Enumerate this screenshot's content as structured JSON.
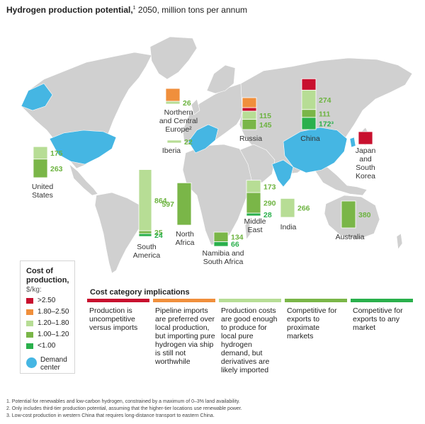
{
  "title": {
    "bold": "Hydrogen production potential,",
    "sup": "1",
    "rest": " 2050, million tons per annum"
  },
  "colors": {
    "gt250": "#c8102e",
    "r180_250": "#f08f3c",
    "r120_180": "#b7dd95",
    "r100_120": "#7ab648",
    "lt100": "#2ab04c",
    "demand": "#45b6e3",
    "land": "#d0d0d0",
    "value_text": "#6cb33f"
  },
  "chart_data": {
    "type": "bar",
    "stacked": true,
    "units": "million tons per annum",
    "categories": [
      "United States",
      "South America",
      "North Africa",
      "Namibia and South Africa",
      "Middle East",
      "India",
      "Iberia",
      "Northern and Central Europe",
      "Russia",
      "China",
      "Japan and South Korea",
      "Australia"
    ],
    "series": [
      {
        "name": ">2.50",
        "values": [
          null,
          null,
          null,
          null,
          null,
          null,
          null,
          null,
          null,
          null,
          null,
          null
        ]
      },
      {
        "name": "1.80–2.50",
        "values": [
          null,
          null,
          null,
          null,
          null,
          null,
          null,
          null,
          null,
          null,
          null,
          null
        ]
      },
      {
        "name": "1.20–1.80",
        "values": [
          175,
          864,
          null,
          null,
          173,
          266,
          22,
          26,
          115,
          274,
          null,
          null
        ]
      },
      {
        "name": "1.00–1.20",
        "values": [
          263,
          25,
          597,
          134,
          290,
          null,
          null,
          null,
          145,
          111,
          null,
          380
        ]
      },
      {
        "name": "<1.00",
        "values": [
          null,
          24,
          null,
          66,
          28,
          null,
          null,
          null,
          null,
          172,
          null,
          null
        ]
      }
    ],
    "value_labels": {
      "United States": [
        "175",
        "263"
      ],
      "South America": [
        "864",
        "25",
        "24"
      ],
      "North Africa": [
        "597"
      ],
      "Namibia and South Africa": [
        "134",
        "66"
      ],
      "Middle East": [
        "173",
        "290",
        "28"
      ],
      "India": [
        "266"
      ],
      "Iberia": [
        "22"
      ],
      "Northern and Central Europe": [
        "26"
      ],
      "Russia": [
        "115",
        "145"
      ],
      "China": [
        "274",
        "111",
        "172³"
      ],
      "Japan and South Korea": [],
      "Australia": [
        "380"
      ]
    }
  },
  "region_labels": {
    "us": "United\nStates",
    "south_america": "South\nAmerica",
    "north_africa": "North\nAfrica",
    "namibia": "Namibia and\nSouth Africa",
    "middle_east": "Middle\nEast",
    "india": "India",
    "iberia": "Iberia",
    "europe": "Northern\nand Central\nEurope²",
    "russia": "Russia",
    "china": "China",
    "japan": "Japan\nand\nSouth\nKorea",
    "australia": "Australia"
  },
  "legend": {
    "title": "Cost of production,",
    "unit": "$/kg:",
    "items": [
      {
        "label": ">2.50",
        "color": "#c8102e"
      },
      {
        "label": "1.80–2.50",
        "color": "#f08f3c"
      },
      {
        "label": "1.20–1.80",
        "color": "#b7dd95"
      },
      {
        "label": "1.00–1.20",
        "color": "#7ab648"
      },
      {
        "label": "<1.00",
        "color": "#2ab04c"
      }
    ],
    "demand_label": "Demand\ncenter"
  },
  "implications": {
    "title": "Cost category implications",
    "items": [
      {
        "color": "#c8102e",
        "text": "Production is uncompetitive versus imports"
      },
      {
        "color": "#f08f3c",
        "text": "Pipeline imports are preferred over local production, but importing pure hydrogen via ship is still not worthwhile"
      },
      {
        "color": "#b7dd95",
        "text": "Production costs are good enough to produce for local pure hydrogen demand, but derivatives are likely imported"
      },
      {
        "color": "#7ab648",
        "text": "Competitive for exports to proximate markets"
      },
      {
        "color": "#2ab04c",
        "text": "Competitive for exports to any market"
      }
    ]
  },
  "footnotes": [
    "1.  Potential for renewables and low-carbon hydrogen, constrained by a maximum of 0–3% land availability.",
    "2.  Only includes third-tier production potential, assuming that the higher-tier locations use renewable power.",
    "3.  Low-cost production in western China that requires long-distance transport to eastern China."
  ]
}
